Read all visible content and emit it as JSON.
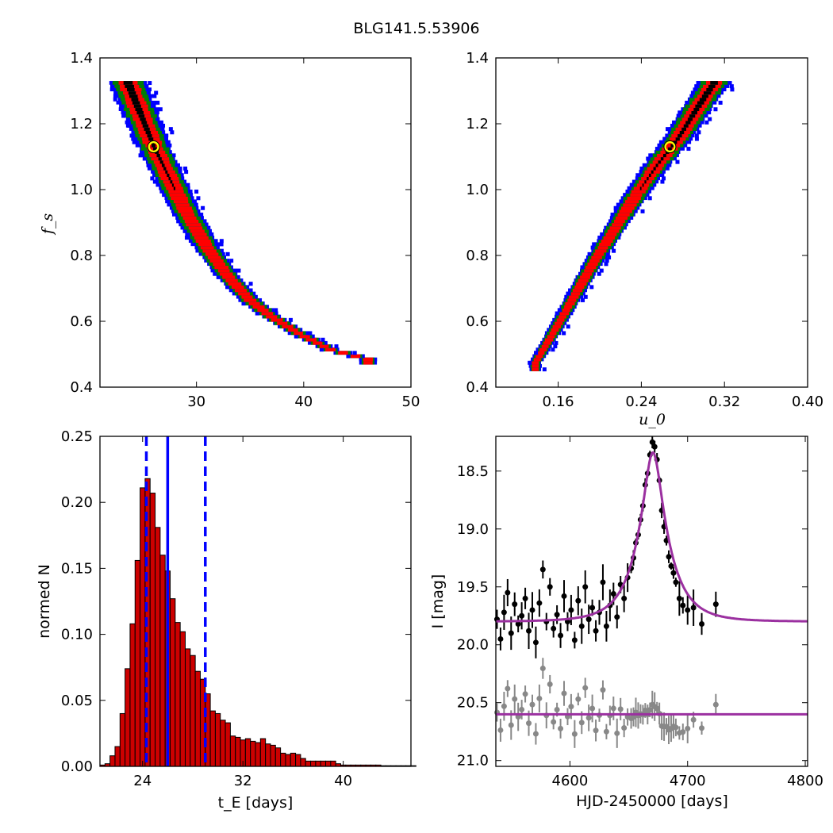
{
  "suptitle": "BLG141.5.53906",
  "colors": {
    "level_1sigma": "#000000",
    "level_2sigma": "#ff0000",
    "level_3sigma": "#008000",
    "level_4sigma": "#0000ff",
    "best_fit_marker": "#ffff00",
    "histogram_bar": "#cc0000",
    "median_line": "#0000ff",
    "model_curve": "#9b30a0",
    "data_points": "#000000",
    "residuals": "#888888"
  },
  "chart_data": [
    {
      "id": "tE_fs",
      "type": "heatmap",
      "xlabel": "",
      "ylabel": "f_s",
      "xlim": [
        21,
        50
      ],
      "ylim": [
        0.4,
        1.4
      ],
      "xticks": [
        30,
        40,
        50
      ],
      "yticks": [
        0.4,
        0.6,
        0.8,
        1.0,
        1.2,
        1.4
      ],
      "levels": [
        "1 sigma",
        "2 sigma",
        "3 sigma",
        "4 sigma"
      ],
      "ridge": [
        [
          23.5,
          1.33
        ],
        [
          24.5,
          1.25
        ],
        [
          26.0,
          1.13
        ],
        [
          27.5,
          1.03
        ],
        [
          29.0,
          0.93
        ],
        [
          31.0,
          0.82
        ],
        [
          33.0,
          0.73
        ],
        [
          35.0,
          0.66
        ],
        [
          37.0,
          0.61
        ],
        [
          39.5,
          0.56
        ],
        [
          42.5,
          0.51
        ],
        [
          46.0,
          0.48
        ]
      ],
      "best_fit": {
        "x": 26.0,
        "y": 1.13
      }
    },
    {
      "id": "u0_fs",
      "type": "heatmap",
      "xlabel": "u_0",
      "ylabel": "",
      "xlim": [
        0.1,
        0.4
      ],
      "ylim": [
        0.4,
        1.4
      ],
      "xticks": [
        0.16,
        0.24,
        0.32,
        0.4
      ],
      "yticks": [
        0.4,
        0.6,
        0.8,
        1.0,
        1.2,
        1.4
      ],
      "levels": [
        "1 sigma",
        "2 sigma",
        "3 sigma",
        "4 sigma"
      ],
      "ridge": [
        [
          0.138,
          0.47
        ],
        [
          0.155,
          0.56
        ],
        [
          0.175,
          0.67
        ],
        [
          0.195,
          0.78
        ],
        [
          0.215,
          0.88
        ],
        [
          0.235,
          0.98
        ],
        [
          0.255,
          1.07
        ],
        [
          0.275,
          1.15
        ],
        [
          0.295,
          1.25
        ],
        [
          0.31,
          1.32
        ]
      ],
      "best_fit": {
        "x": 0.2675,
        "y": 1.13
      }
    },
    {
      "id": "tE_hist",
      "type": "bar",
      "xlabel": "t_E  [days]",
      "ylabel": "normed N",
      "xlim": [
        20.6,
        45.4
      ],
      "ylim": [
        0,
        0.25
      ],
      "xticks": [
        24,
        32,
        40
      ],
      "yticks": [
        0.0,
        0.05,
        0.1,
        0.15,
        0.2,
        0.25
      ],
      "bin_width": 0.4,
      "bin_start": 20.6,
      "values": [
        0.001,
        0.002,
        0.008,
        0.015,
        0.04,
        0.074,
        0.108,
        0.156,
        0.211,
        0.218,
        0.207,
        0.181,
        0.16,
        0.148,
        0.127,
        0.109,
        0.102,
        0.089,
        0.084,
        0.072,
        0.066,
        0.055,
        0.042,
        0.04,
        0.035,
        0.033,
        0.023,
        0.022,
        0.02,
        0.021,
        0.019,
        0.018,
        0.021,
        0.017,
        0.016,
        0.014,
        0.01,
        0.009,
        0.01,
        0.009,
        0.006,
        0.004,
        0.004,
        0.004,
        0.004,
        0.004,
        0.004,
        0.002,
        0.001,
        0.001,
        0.001,
        0.001,
        0.001,
        0.001,
        0.001,
        0.001,
        0.0005,
        0.0005,
        0.0005,
        0.0005,
        0.0005,
        0.0005,
        0.0005
      ],
      "median": 26.0,
      "interval_lo": 24.3,
      "interval_hi": 29.0
    },
    {
      "id": "lightcurve",
      "type": "scatter",
      "xlabel": "HJD-2450000 [days]",
      "ylabel": "I [mag]",
      "xlim": [
        4537,
        4802
      ],
      "ylim": [
        21.05,
        18.2
      ],
      "xticks": [
        4600,
        4700,
        4800
      ],
      "yticks": [
        18.5,
        19.0,
        19.5,
        20.0,
        20.5,
        21.0
      ],
      "model": {
        "t0": 4670.5,
        "tE": 26.0,
        "u0": 0.2675,
        "baseline_mag": 19.8
      },
      "residual_offset_mag": 20.6,
      "observed_hjd": [
        4538,
        4541,
        4544,
        4547,
        4550,
        4553,
        4556,
        4559,
        4562,
        4565,
        4568,
        4571,
        4574,
        4577,
        4580,
        4583,
        4586,
        4589,
        4592,
        4595,
        4598,
        4601,
        4604,
        4607,
        4610,
        4613,
        4616,
        4619,
        4622,
        4625,
        4628,
        4631,
        4634,
        4637,
        4640,
        4643,
        4646,
        4649,
        4652,
        4654,
        4656,
        4658,
        4660,
        4662,
        4664,
        4666,
        4668,
        4670,
        4672,
        4674,
        4676,
        4678,
        4680,
        4682,
        4684,
        4686,
        4688,
        4690,
        4693,
        4696,
        4700,
        4705,
        4712,
        4724
      ],
      "observed_mag": [
        19.78,
        19.95,
        19.72,
        19.55,
        19.9,
        19.65,
        19.82,
        19.75,
        19.6,
        19.88,
        19.7,
        19.98,
        19.64,
        19.35,
        19.8,
        19.5,
        19.86,
        19.74,
        19.92,
        19.58,
        19.8,
        19.7,
        19.96,
        19.62,
        19.84,
        19.5,
        19.78,
        19.68,
        19.88,
        19.72,
        19.46,
        19.84,
        19.66,
        19.56,
        19.76,
        19.48,
        19.6,
        19.42,
        19.34,
        19.25,
        19.12,
        19.05,
        18.92,
        18.8,
        18.62,
        18.52,
        18.36,
        18.25,
        18.29,
        18.4,
        18.58,
        18.84,
        18.98,
        19.1,
        19.24,
        19.32,
        19.38,
        19.46,
        19.6,
        19.66,
        19.7,
        19.68,
        19.82,
        19.65
      ]
    }
  ]
}
